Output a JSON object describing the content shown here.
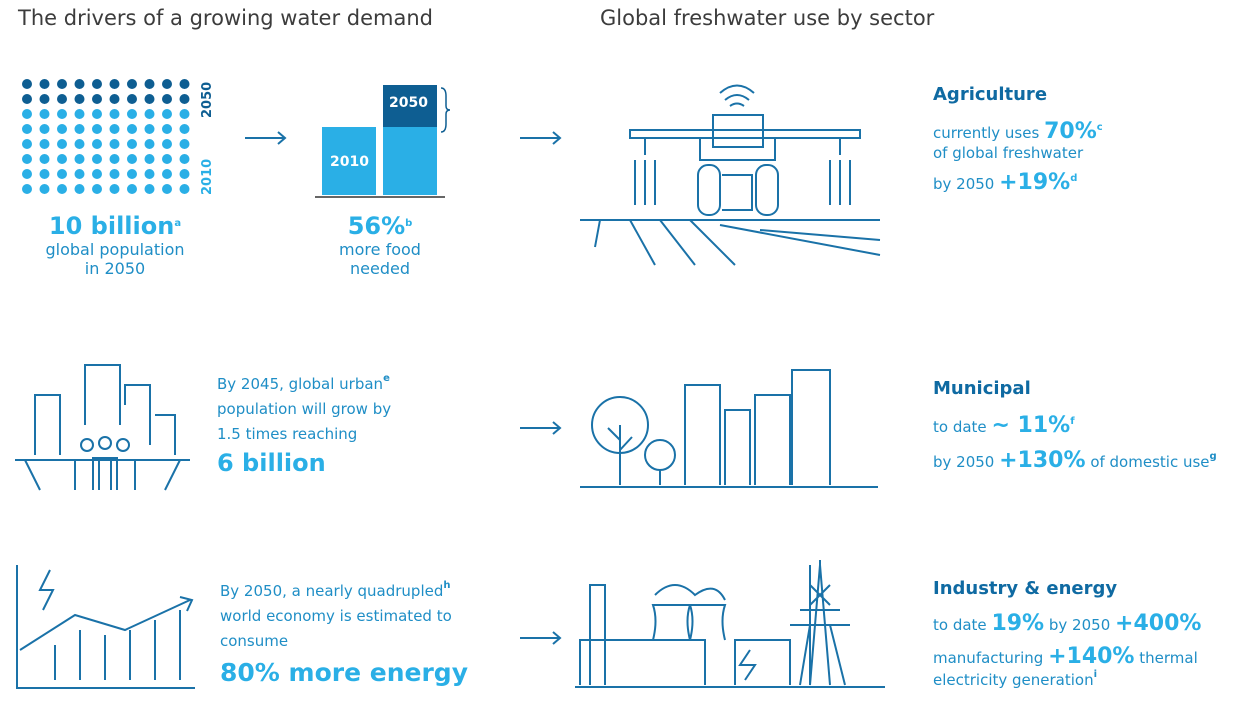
{
  "left_title": "The drivers of a growing water demand",
  "right_title": "Global freshwater use by sector",
  "population": {
    "year_top": "2050",
    "year_bottom": "2010",
    "value": "10 billion",
    "note": "a",
    "lines": [
      "global population",
      "in 2050"
    ]
  },
  "food": {
    "bar_old": "2010",
    "bar_new": "2050",
    "value": "56%",
    "note": "b",
    "lines": [
      "more food",
      "needed"
    ]
  },
  "urban": {
    "line1": "By 2045, global urban",
    "note": "e",
    "line2": "population will grow by",
    "line3": "1.5 times reaching",
    "value": "6 billion"
  },
  "economy": {
    "line1": "By 2050, a nearly quadrupled",
    "note": "h",
    "line2": "world economy is estimated to",
    "line3": "consume",
    "value": "80% more energy"
  },
  "agriculture": {
    "name": "Agriculture",
    "lead": "currently uses",
    "share": "70%",
    "share_note": "c",
    "share_tail": "of global freshwater",
    "future_lead": "by 2050",
    "growth": "+19%",
    "growth_note": "d"
  },
  "municipal": {
    "name": "Municipal",
    "lead": "to date",
    "share": "~ 11%",
    "share_note": "f",
    "future_lead": "by 2050",
    "growth": "+130%",
    "growth_tail": "of domestic use",
    "growth_note": "g"
  },
  "industry": {
    "name": "Industry & energy",
    "lead": "to date",
    "share": "19%",
    "future_lead": "by 2050",
    "growth": "+400%",
    "manufacturing": "manufacturing",
    "thermal_growth": "+140%",
    "thermal": "thermal",
    "electricity": "electricity generation",
    "electricity_note": "i"
  }
}
